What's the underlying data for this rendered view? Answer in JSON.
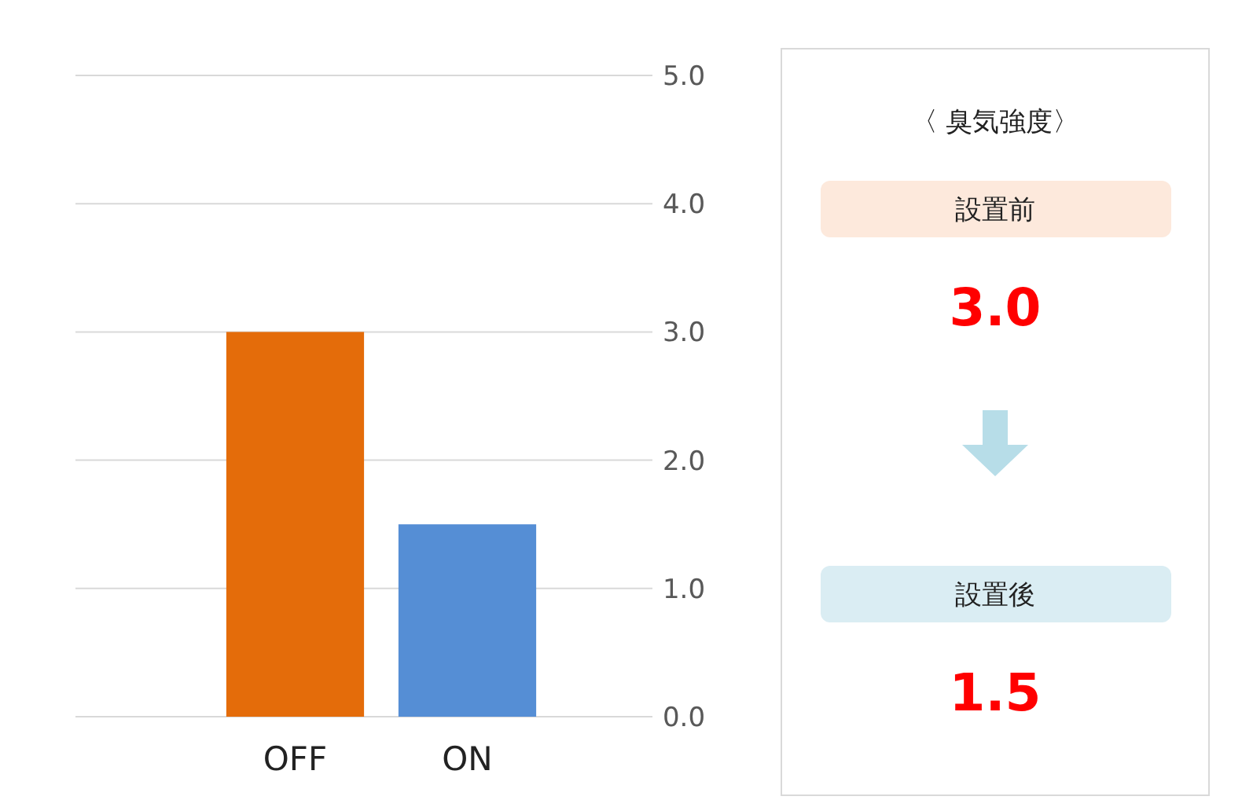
{
  "chart_data": [
    {
      "type": "bar",
      "categories": [
        "OFF",
        "ON"
      ],
      "values": [
        3.0,
        1.5
      ],
      "colors": [
        "#e46c0a",
        "#558ed5"
      ],
      "ylim": [
        0,
        5
      ],
      "yticks": [
        {
          "value": 0,
          "label": "0.0"
        },
        {
          "value": 1,
          "label": "1.0"
        },
        {
          "value": 2,
          "label": "2.0"
        },
        {
          "value": 3,
          "label": "3.0"
        },
        {
          "value": 4,
          "label": "4.0"
        },
        {
          "value": 5,
          "label": "5.0"
        }
      ],
      "grid": "y"
    },
    {
      "type": "other",
      "title": "〈 臭気強度〉",
      "annotations": [
        "設置前",
        "3.0",
        "設置後",
        "1.5"
      ]
    }
  ]
}
